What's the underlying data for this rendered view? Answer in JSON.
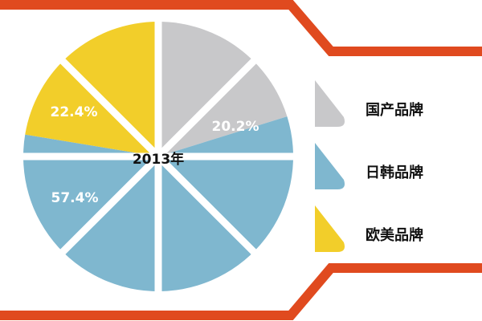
{
  "chart_data": {
    "type": "pie",
    "center_label": "2013年",
    "categories": [
      "国产品牌",
      "日韩品牌",
      "欧美品牌"
    ],
    "values": [
      20.2,
      57.4,
      22.4
    ],
    "value_labels": [
      "20.2%",
      "57.4%",
      "22.4%"
    ],
    "colors": [
      "#c8c8ca",
      "#7fb7cf",
      "#f2ce2a"
    ]
  }
}
